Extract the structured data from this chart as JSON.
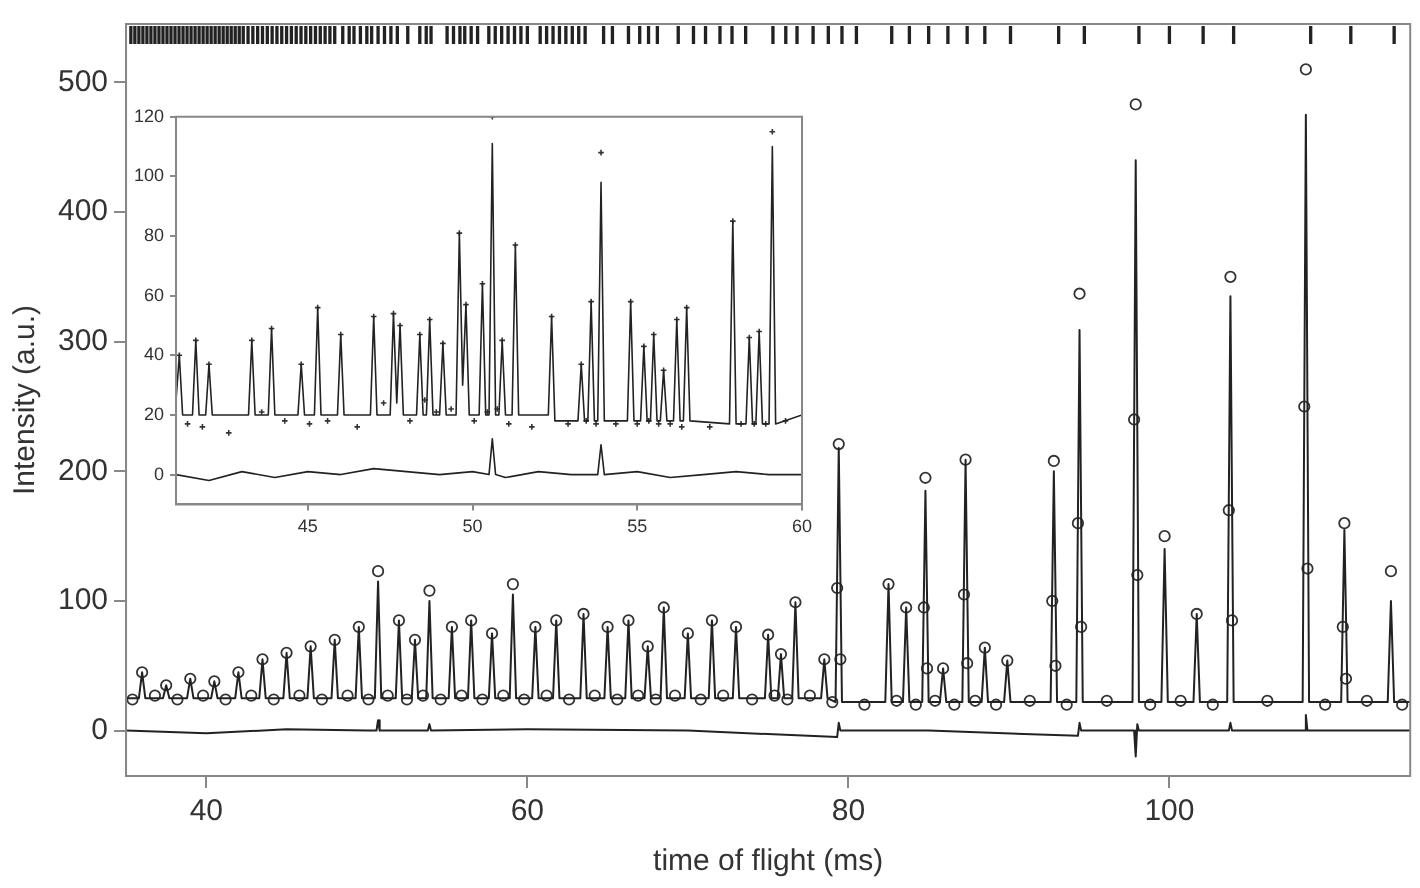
{
  "chart_data": [
    {
      "type": "scatter",
      "xlabel": "time of flight (ms)",
      "ylabel": "Intensity (a.u.)",
      "xlim": [
        35,
        115
      ],
      "ylim": [
        -35,
        545
      ],
      "xticks": [
        40,
        60,
        80,
        100
      ],
      "yticks": [
        0,
        100,
        200,
        300,
        400,
        500
      ],
      "grid": false,
      "series": [
        {
          "type": "line",
          "color": "#222222",
          "x": [
            35,
            35.8,
            36,
            36.2,
            37.3,
            37.5,
            37.7,
            38.8,
            39,
            39.2,
            40.3,
            40.5,
            40.7,
            41.8,
            42,
            42.2,
            43.3,
            43.5,
            43.7,
            44.8,
            45,
            45.2,
            46.3,
            46.5,
            46.7,
            47.8,
            48,
            48.2,
            49.3,
            49.5,
            49.7,
            50.5,
            50.7,
            50.9,
            51.8,
            52,
            52.2,
            52.8,
            53,
            53.2,
            53.7,
            53.9,
            54.1,
            55.1,
            55.3,
            55.5,
            56.3,
            56.5,
            56.7,
            57.6,
            57.8,
            58,
            58.9,
            59.1,
            59.3,
            60.3,
            60.5,
            60.7,
            61.6,
            61.8,
            62,
            63.3,
            63.5,
            63.7,
            64.8,
            65,
            65.2,
            66.1,
            66.3,
            66.5,
            67.3,
            67.5,
            67.7,
            68.3,
            68.5,
            68.7,
            69.8,
            70,
            70.2,
            71.3,
            71.5,
            71.7,
            72.8,
            73,
            73.2,
            74.8,
            75,
            75.2,
            75.6,
            75.8,
            76,
            76.5,
            76.7,
            76.9,
            78.3,
            78.5,
            78.7,
            79.2,
            79.4,
            79.6,
            82.3,
            82.5,
            82.7,
            83.4,
            83.6,
            83.8,
            84.6,
            84.8,
            85,
            85.7,
            85.9,
            86.1,
            87.1,
            87.3,
            87.5,
            88.3,
            88.5,
            88.7,
            89.7,
            89.9,
            90.1,
            92.6,
            92.8,
            93,
            94.2,
            94.4,
            94.6,
            97.7,
            97.9,
            98.1,
            99.5,
            99.7,
            99.9,
            101.5,
            101.7,
            101.9,
            103.6,
            103.8,
            104,
            108.3,
            108.5,
            108.7,
            110.7,
            110.9,
            111.1,
            113.6,
            113.8,
            114,
            115
          ],
          "values": [
            25,
            25,
            45,
            25,
            25,
            35,
            25,
            25,
            40,
            25,
            25,
            38,
            25,
            25,
            45,
            25,
            25,
            55,
            25,
            25,
            60,
            25,
            25,
            65,
            25,
            25,
            70,
            25,
            25,
            80,
            25,
            25,
            115,
            25,
            25,
            85,
            25,
            25,
            70,
            25,
            25,
            100,
            25,
            25,
            80,
            25,
            25,
            85,
            25,
            25,
            75,
            25,
            25,
            105,
            25,
            25,
            80,
            25,
            25,
            85,
            25,
            25,
            90,
            25,
            25,
            80,
            25,
            25,
            85,
            25,
            25,
            65,
            25,
            25,
            95,
            25,
            25,
            75,
            25,
            25,
            85,
            25,
            25,
            80,
            25,
            25,
            74,
            25,
            25,
            59,
            25,
            25,
            99,
            25,
            25,
            55,
            25,
            22,
            218,
            22,
            22,
            113,
            22,
            22,
            95,
            22,
            22,
            185,
            22,
            22,
            48,
            22,
            22,
            209,
            22,
            22,
            64,
            22,
            22,
            54,
            22,
            22,
            200,
            22,
            22,
            309,
            22,
            22,
            440,
            22,
            22,
            140,
            22,
            22,
            90,
            22,
            22,
            335,
            22,
            22,
            475,
            22,
            22,
            155,
            22,
            22,
            100,
            22,
            22
          ]
        },
        {
          "type": "scatter",
          "marker": "circle",
          "color": "#333333",
          "x": [
            36,
            37.5,
            39,
            40.5,
            42,
            43.5,
            45,
            46.5,
            48,
            49.5,
            50.7,
            52,
            53,
            53.9,
            55.3,
            56.5,
            57.8,
            59.1,
            60.5,
            61.8,
            63.5,
            65,
            66.3,
            67.5,
            68.5,
            70,
            71.5,
            73,
            75,
            75.8,
            76.7,
            78.5,
            79.4,
            82.5,
            83.6,
            84.8,
            85.9,
            87.3,
            88.5,
            89.9,
            92.8,
            94.4,
            97.9,
            99.7,
            101.7,
            103.8,
            108.5,
            110.9,
            113.8,
            35.4,
            36.8,
            38.2,
            39.8,
            41.2,
            42.8,
            44.2,
            45.8,
            47.2,
            48.8,
            50.1,
            51.3,
            52.5,
            53.5,
            54.6,
            55.9,
            57.2,
            58.5,
            59.8,
            61.2,
            62.6,
            64.2,
            65.6,
            66.9,
            68,
            69.2,
            70.8,
            72.2,
            74,
            75.4,
            76.2,
            77.6,
            79,
            81,
            83,
            84.2,
            85.4,
            86.6,
            87.9,
            89.2,
            91.3,
            93.6,
            96.1,
            98.8,
            100.7,
            102.7,
            106.1,
            109.7,
            112.3,
            114.5,
            79.3,
            79.5,
            84.7,
            84.9,
            87.2,
            87.4,
            92.7,
            92.9,
            94.3,
            94.5,
            97.8,
            98,
            103.7,
            103.9,
            108.4,
            108.6,
            110.8,
            111
          ],
          "values": [
            45,
            35,
            40,
            38,
            45,
            55,
            60,
            65,
            70,
            80,
            123,
            85,
            70,
            108,
            80,
            85,
            75,
            113,
            80,
            85,
            90,
            80,
            85,
            65,
            95,
            75,
            85,
            80,
            74,
            59,
            99,
            55,
            221,
            113,
            95,
            195,
            48,
            209,
            64,
            54,
            208,
            337,
            483,
            150,
            90,
            350,
            510,
            160,
            123,
            24,
            27,
            24,
            27,
            24,
            27,
            24,
            27,
            24,
            27,
            24,
            27,
            24,
            27,
            24,
            27,
            24,
            27,
            24,
            27,
            24,
            27,
            24,
            27,
            24,
            27,
            24,
            27,
            24,
            27,
            24,
            27,
            22,
            20,
            23,
            20,
            23,
            20,
            23,
            20,
            23,
            20,
            23,
            20,
            23,
            20,
            23,
            20,
            23,
            20,
            110,
            55,
            95,
            48,
            105,
            52,
            100,
            50,
            160,
            80,
            240,
            120,
            170,
            85,
            250,
            125,
            80,
            40
          ]
        },
        {
          "type": "line",
          "color": "#222222",
          "x": [
            35,
            40,
            45,
            50,
            50.6,
            50.7,
            50.8,
            53.8,
            53.9,
            54,
            60,
            70,
            79.3,
            79.4,
            79.5,
            85,
            94.3,
            94.4,
            94.5,
            97.8,
            97.9,
            98,
            98.1,
            103.7,
            103.8,
            103.9,
            108.4,
            108.5,
            108.6,
            115
          ],
          "values": [
            0,
            -2,
            1,
            0,
            0,
            8,
            0,
            0,
            5,
            0,
            1,
            0,
            -5,
            6,
            0,
            0,
            -4,
            6,
            0,
            0,
            -20,
            5,
            0,
            0,
            6,
            0,
            0,
            12,
            0,
            0
          ]
        },
        {
          "type": "bar",
          "color": "#222222",
          "x": [
            35.3,
            35.55,
            35.8,
            36.05,
            36.3,
            36.55,
            36.8,
            37.05,
            37.3,
            37.55,
            37.8,
            38.05,
            38.3,
            38.55,
            38.8,
            39.05,
            39.3,
            39.55,
            39.8,
            40.05,
            40.3,
            40.55,
            40.8,
            41.05,
            41.3,
            41.55,
            41.8,
            42.05,
            42.3,
            42.6,
            42.9,
            43.2,
            43.5,
            43.8,
            44.1,
            44.4,
            44.7,
            45,
            45.3,
            45.6,
            45.9,
            46.2,
            46.5,
            46.8,
            47.1,
            47.4,
            47.7,
            48,
            48.5,
            48.9,
            49.2,
            49.6,
            50,
            50.3,
            50.7,
            51.1,
            51.5,
            51.9,
            52.55,
            53.3,
            53.7,
            54,
            55,
            55.4,
            55.8,
            56.1,
            56.5,
            56.9,
            57.6,
            58,
            58.4,
            58.8,
            59.2,
            59.6,
            60,
            60.8,
            61.2,
            61.6,
            62,
            62.4,
            62.8,
            63.2,
            63.6,
            64.75,
            65.3,
            66.3,
            67,
            67.55,
            68.1,
            69.4,
            70.35,
            71.1,
            72,
            72.75,
            73.6,
            75.3,
            76.1,
            76.8,
            77.8,
            78.75,
            79.6,
            80.5,
            82.7,
            83.8,
            85,
            86.2,
            87.4,
            88.5,
            90.1,
            93.1,
            94.7,
            98.1,
            100,
            102.1,
            104,
            108.8,
            111.3,
            114
          ],
          "base": [
            530,
            530,
            530,
            530,
            530,
            530,
            530,
            530,
            530,
            530,
            530,
            530,
            530,
            530,
            530,
            530,
            530,
            530,
            530,
            530,
            530,
            530,
            530,
            530,
            530,
            530,
            530,
            530,
            530,
            530,
            530,
            530,
            530,
            530,
            530,
            530,
            530,
            530,
            530,
            530,
            530,
            530,
            530,
            530,
            530,
            530,
            530,
            530,
            530,
            530,
            530,
            530,
            530,
            530,
            530,
            530,
            530,
            530,
            530,
            530,
            530,
            530,
            530,
            530,
            530,
            530,
            530,
            530,
            530,
            530,
            530,
            530,
            530,
            530,
            530,
            530,
            530,
            530,
            530,
            530,
            530,
            530,
            530,
            530,
            530,
            530,
            530,
            530,
            530,
            530,
            530,
            530,
            530,
            530,
            530,
            530,
            530,
            530,
            530,
            530,
            530,
            530,
            530,
            530,
            530,
            530,
            530,
            530,
            530,
            530,
            530,
            530,
            530,
            530,
            530,
            530,
            530,
            530
          ],
          "values": [
            13,
            13,
            13,
            13,
            13,
            13,
            13,
            13,
            13,
            13,
            13,
            13,
            13,
            13,
            13,
            13,
            13,
            13,
            13,
            13,
            13,
            13,
            13,
            13,
            13,
            13,
            13,
            13,
            13,
            13,
            13,
            13,
            13,
            13,
            13,
            13,
            13,
            13,
            13,
            13,
            13,
            13,
            13,
            13,
            13,
            13,
            13,
            13,
            13,
            13,
            13,
            13,
            13,
            13,
            13,
            13,
            13,
            13,
            13,
            13,
            13,
            13,
            13,
            13,
            13,
            13,
            13,
            13,
            13,
            13,
            13,
            13,
            13,
            13,
            13,
            13,
            13,
            13,
            13,
            13,
            13,
            13,
            13,
            13,
            13,
            13,
            13,
            13,
            13,
            13,
            13,
            13,
            13,
            13,
            13,
            13,
            13,
            13,
            13,
            13,
            13,
            13,
            13,
            13,
            13,
            13,
            13,
            13,
            13,
            13,
            13,
            13,
            13,
            13,
            13,
            13,
            13,
            13
          ]
        }
      ]
    },
    {
      "type": "scatter",
      "xlim": [
        41,
        60
      ],
      "ylim": [
        -10,
        120
      ],
      "xticks": [
        45,
        50,
        55,
        60
      ],
      "yticks": [
        0,
        20,
        40,
        60,
        80,
        100,
        120
      ],
      "grid": false,
      "series": [
        {
          "type": "line",
          "color": "#222222",
          "x": [
            41,
            41.1,
            41.2,
            41.5,
            41.6,
            41.7,
            41.9,
            42,
            42.1,
            43.2,
            43.3,
            43.4,
            43.8,
            43.9,
            44,
            44.7,
            44.8,
            44.9,
            45.2,
            45.3,
            45.4,
            45.9,
            46,
            46.1,
            46.9,
            47,
            47.1,
            47.5,
            47.6,
            47.7,
            47.7,
            47.8,
            47.9,
            48.3,
            48.4,
            48.5,
            48.6,
            48.7,
            48.8,
            49,
            49.1,
            49.2,
            49.5,
            49.6,
            49.7,
            49.7,
            49.8,
            49.9,
            50.2,
            50.3,
            50.4,
            50.5,
            50.6,
            50.7,
            50.8,
            50.9,
            51,
            51.2,
            51.3,
            51.4,
            52.3,
            52.4,
            52.5,
            53.2,
            53.3,
            53.4,
            53.5,
            53.6,
            53.7,
            53.8,
            53.9,
            54,
            54.7,
            54.8,
            54.9,
            55.1,
            55.2,
            55.3,
            55.4,
            55.5,
            55.6,
            55.7,
            55.8,
            55.9,
            56.1,
            56.2,
            56.3,
            56.4,
            56.5,
            56.6,
            57.8,
            57.9,
            58,
            58.3,
            58.4,
            58.5,
            58.6,
            58.7,
            58.8,
            59,
            59.1,
            59.2,
            60
          ],
          "values": [
            25,
            40,
            20,
            20,
            45,
            20,
            20,
            37,
            20,
            20,
            45,
            20,
            20,
            49,
            20,
            20,
            37,
            20,
            20,
            56,
            20,
            20,
            47,
            20,
            20,
            53,
            20,
            20,
            54,
            24,
            24,
            50,
            20,
            20,
            47,
            20,
            20,
            52,
            20,
            20,
            44,
            20,
            20,
            81,
            30,
            30,
            57,
            20,
            20,
            64,
            20,
            20,
            111,
            20,
            20,
            45,
            20,
            20,
            77,
            20,
            20,
            53,
            18,
            18,
            37,
            18,
            18,
            58,
            18,
            18,
            98,
            18,
            18,
            58,
            18,
            18,
            43,
            18,
            18,
            47,
            18,
            18,
            35,
            18,
            18,
            52,
            18,
            18,
            56,
            18,
            17,
            85,
            17,
            17,
            46,
            17,
            17,
            48,
            17,
            17,
            110,
            17,
            20
          ]
        },
        {
          "type": "scatter",
          "marker": "cross",
          "color": "#333333",
          "x": [
            41.1,
            41.6,
            42,
            43.3,
            43.9,
            44.8,
            45.3,
            46,
            47,
            47.6,
            47.8,
            48.4,
            48.7,
            49.1,
            49.6,
            49.8,
            50.3,
            50.6,
            50.9,
            51.3,
            52.4,
            53.3,
            53.6,
            53.9,
            54.8,
            55.2,
            55.5,
            55.8,
            56.2,
            56.5,
            57.9,
            58.4,
            58.7,
            59.1,
            41.35,
            41.8,
            42.6,
            43.6,
            44.3,
            45.05,
            45.6,
            46.5,
            47.3,
            48.1,
            48.55,
            48.9,
            49.35,
            50.05,
            50.45,
            50.75,
            51.1,
            51.8,
            52.9,
            53.45,
            53.75,
            54.35,
            55,
            55.35,
            55.65,
            56,
            56.35,
            57.2,
            58.15,
            58.55,
            58.9,
            59.5
          ],
          "values": [
            40,
            45,
            37,
            45,
            49,
            37,
            56,
            47,
            53,
            54,
            50,
            47,
            52,
            44,
            81,
            57,
            64,
            120,
            45,
            77,
            53,
            37,
            58,
            108,
            58,
            43,
            47,
            35,
            52,
            56,
            85,
            46,
            48,
            115,
            17,
            16,
            14,
            21,
            18,
            17,
            18,
            16,
            24,
            18,
            25,
            21,
            22,
            18,
            21,
            22,
            17,
            16,
            17,
            18,
            17,
            17,
            17,
            18,
            17,
            17,
            16,
            16,
            17,
            17,
            17,
            18
          ]
        },
        {
          "type": "line",
          "color": "#222222",
          "x": [
            41,
            42,
            43,
            44,
            45,
            46,
            47,
            48,
            49,
            50,
            50.5,
            50.6,
            50.7,
            51,
            52,
            53,
            53.8,
            53.9,
            54,
            55,
            56,
            57,
            58,
            59,
            60
          ],
          "values": [
            0,
            -2,
            1,
            -1,
            1,
            0,
            2,
            1,
            0,
            1,
            0,
            12,
            0,
            -1,
            1,
            0,
            0,
            10,
            0,
            1,
            -1,
            0,
            1,
            0,
            0
          ]
        }
      ]
    }
  ]
}
